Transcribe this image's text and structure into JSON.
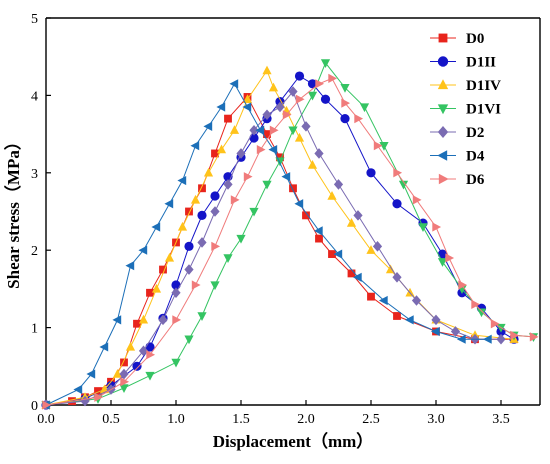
{
  "chart_data": {
    "type": "line",
    "xlabel": "Displacement（mm）",
    "ylabel": "Shear stress（MPa）",
    "xlim": [
      0,
      3.8
    ],
    "ylim": [
      0,
      5
    ],
    "xticks": [
      "0.0",
      "0.5",
      "1.0",
      "1.5",
      "2.0",
      "2.5",
      "3.0",
      "3.5"
    ],
    "yticks": [
      "0",
      "1",
      "2",
      "3",
      "4",
      "5"
    ],
    "legend_position": "top-right",
    "series": [
      {
        "name": "D0",
        "color": "#e8241c",
        "marker": "square",
        "x": [
          0,
          0.2,
          0.3,
          0.4,
          0.5,
          0.6,
          0.7,
          0.8,
          0.9,
          1.0,
          1.1,
          1.2,
          1.3,
          1.4,
          1.55,
          1.7,
          1.8,
          1.9,
          2.0,
          2.1,
          2.2,
          2.35,
          2.5,
          2.7,
          3.0,
          3.3,
          3.6
        ],
        "y": [
          0,
          0.05,
          0.1,
          0.18,
          0.3,
          0.55,
          1.05,
          1.45,
          1.75,
          2.1,
          2.5,
          2.8,
          3.25,
          3.7,
          3.98,
          3.5,
          3.2,
          2.8,
          2.45,
          2.15,
          1.95,
          1.7,
          1.4,
          1.15,
          0.95,
          0.85,
          0.85
        ]
      },
      {
        "name": "D1II",
        "color": "#1414c8",
        "marker": "circle",
        "x": [
          0,
          0.3,
          0.5,
          0.7,
          0.8,
          0.9,
          1.0,
          1.1,
          1.2,
          1.3,
          1.4,
          1.5,
          1.6,
          1.7,
          1.8,
          1.95,
          2.05,
          2.15,
          2.3,
          2.5,
          2.7,
          2.9,
          3.05,
          3.2,
          3.35,
          3.5,
          3.6
        ],
        "y": [
          0,
          0.08,
          0.25,
          0.5,
          0.75,
          1.12,
          1.55,
          2.05,
          2.45,
          2.7,
          2.95,
          3.2,
          3.45,
          3.7,
          3.92,
          4.25,
          4.15,
          3.95,
          3.7,
          3.0,
          2.6,
          2.35,
          1.95,
          1.45,
          1.25,
          0.95,
          0.85
        ]
      },
      {
        "name": "D1IV",
        "color": "#ffc31a",
        "marker": "triangle-up",
        "x": [
          0,
          0.3,
          0.45,
          0.55,
          0.65,
          0.75,
          0.85,
          0.95,
          1.05,
          1.15,
          1.25,
          1.35,
          1.45,
          1.55,
          1.7,
          1.75,
          1.85,
          1.95,
          2.05,
          2.2,
          2.35,
          2.5,
          2.65,
          2.8,
          3.0,
          3.3,
          3.6
        ],
        "y": [
          0,
          0.1,
          0.2,
          0.4,
          0.75,
          1.1,
          1.5,
          1.9,
          2.3,
          2.65,
          3.0,
          3.3,
          3.55,
          3.95,
          4.32,
          4.1,
          3.8,
          3.45,
          3.1,
          2.7,
          2.35,
          2.0,
          1.75,
          1.45,
          1.1,
          0.9,
          0.85
        ]
      },
      {
        "name": "D1VI",
        "color": "#34c462",
        "marker": "triangle-down",
        "x": [
          0,
          0.4,
          0.6,
          0.8,
          1.0,
          1.1,
          1.2,
          1.3,
          1.4,
          1.5,
          1.6,
          1.7,
          1.8,
          1.9,
          2.05,
          2.15,
          2.3,
          2.45,
          2.6,
          2.75,
          2.9,
          3.05,
          3.2,
          3.35,
          3.5,
          3.6,
          3.75
        ],
        "y": [
          0,
          0.08,
          0.22,
          0.38,
          0.55,
          0.85,
          1.15,
          1.55,
          1.9,
          2.15,
          2.5,
          2.85,
          3.15,
          3.55,
          4.0,
          4.42,
          4.1,
          3.85,
          3.35,
          2.85,
          2.3,
          1.85,
          1.5,
          1.2,
          1.0,
          0.9,
          0.88
        ]
      },
      {
        "name": "D2",
        "color": "#7a6bb2",
        "marker": "diamond",
        "x": [
          0,
          0.3,
          0.5,
          0.6,
          0.75,
          0.9,
          1.0,
          1.1,
          1.2,
          1.3,
          1.4,
          1.5,
          1.6,
          1.7,
          1.8,
          1.9,
          2.0,
          2.1,
          2.25,
          2.4,
          2.55,
          2.7,
          2.85,
          3.0,
          3.15,
          3.3,
          3.5
        ],
        "y": [
          0,
          0.05,
          0.2,
          0.4,
          0.7,
          1.1,
          1.45,
          1.75,
          2.1,
          2.5,
          2.85,
          3.25,
          3.55,
          3.75,
          3.85,
          4.05,
          3.6,
          3.25,
          2.85,
          2.45,
          2.05,
          1.65,
          1.35,
          1.1,
          0.95,
          0.85,
          0.85
        ]
      },
      {
        "name": "D4",
        "color": "#1c6fb8",
        "marker": "triangle-left",
        "x": [
          0,
          0.25,
          0.35,
          0.45,
          0.55,
          0.65,
          0.75,
          0.85,
          0.95,
          1.05,
          1.15,
          1.25,
          1.35,
          1.45,
          1.55,
          1.65,
          1.75,
          1.85,
          1.95,
          2.1,
          2.25,
          2.4,
          2.6,
          2.8,
          3.0,
          3.2,
          3.4
        ],
        "y": [
          0,
          0.2,
          0.4,
          0.75,
          1.1,
          1.8,
          2.0,
          2.3,
          2.6,
          2.9,
          3.35,
          3.6,
          3.85,
          4.15,
          3.85,
          3.55,
          3.3,
          2.95,
          2.6,
          2.25,
          1.95,
          1.65,
          1.35,
          1.1,
          0.95,
          0.85,
          0.85
        ]
      },
      {
        "name": "D6",
        "color": "#f07b7b",
        "marker": "triangle-right",
        "x": [
          0,
          0.4,
          0.6,
          0.8,
          1.0,
          1.15,
          1.3,
          1.45,
          1.55,
          1.65,
          1.75,
          1.85,
          1.95,
          2.1,
          2.2,
          2.3,
          2.4,
          2.55,
          2.7,
          2.85,
          3.0,
          3.1,
          3.2,
          3.3,
          3.45,
          3.6,
          3.75
        ],
        "y": [
          0,
          0.1,
          0.3,
          0.65,
          1.1,
          1.55,
          2.05,
          2.65,
          2.95,
          3.3,
          3.55,
          3.75,
          3.95,
          4.15,
          4.22,
          3.9,
          3.7,
          3.35,
          3.0,
          2.65,
          2.3,
          1.9,
          1.55,
          1.3,
          1.05,
          0.9,
          0.88
        ]
      }
    ]
  }
}
